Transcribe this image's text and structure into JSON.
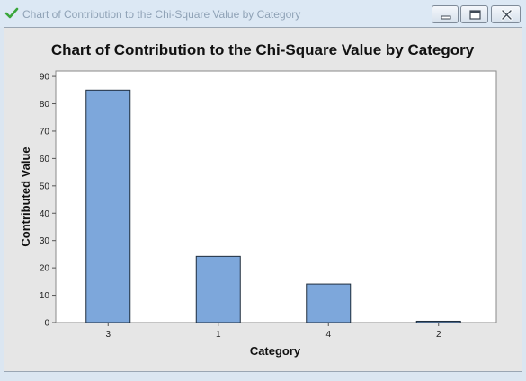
{
  "window": {
    "title": "Chart of Contribution to the Chi-Square Value by Category",
    "controls": {
      "minimize": "minimize",
      "maximize": "maximize",
      "close": "close"
    },
    "icons": {
      "app": "check-icon"
    }
  },
  "chart_data": {
    "type": "bar",
    "title": "Chart of Contribution to the Chi-Square Value by Category",
    "xlabel": "Category",
    "ylabel": "Contributed Value",
    "categories": [
      "3",
      "1",
      "4",
      "2"
    ],
    "values": [
      85,
      24.2,
      14.1,
      0.5
    ],
    "ylim": [
      0,
      92
    ],
    "yticks": [
      0,
      10,
      20,
      30,
      40,
      50,
      60,
      70,
      80,
      90
    ],
    "grid": false,
    "colors": {
      "bar": "#7da7db",
      "bar_edge": "#1f2d3d",
      "plot_bg": "#ffffff",
      "frame_bg": "#e6e6e6"
    }
  }
}
